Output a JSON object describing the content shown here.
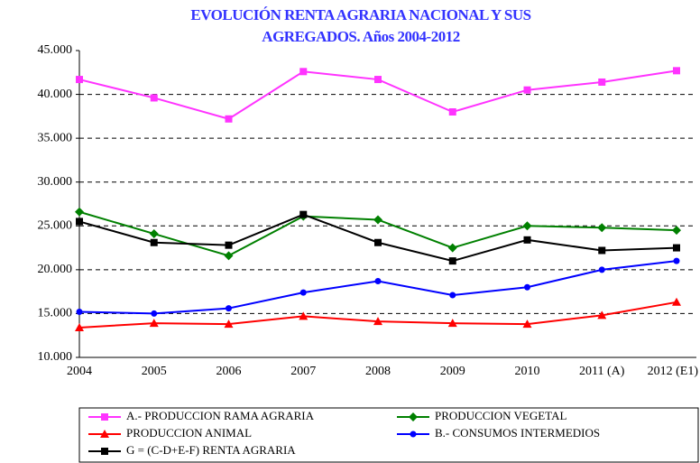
{
  "chart_data": {
    "type": "line",
    "title": [
      "EVOLUCIÓN RENTA AGRARIA NACIONAL Y SUS",
      "AGREGADOS. Años 2004-2012"
    ],
    "categories": [
      "2004",
      "2005",
      "2006",
      "2007",
      "2008",
      "2009",
      "2010",
      "2011 (A)",
      "2012 (E1)"
    ],
    "ylim": [
      10000,
      45000
    ],
    "yticks": [
      {
        "value": 10000,
        "label": "10.000"
      },
      {
        "value": 15000,
        "label": "15.000"
      },
      {
        "value": 20000,
        "label": "20.000"
      },
      {
        "value": 25000,
        "label": "25.000"
      },
      {
        "value": 30000,
        "label": "30.000"
      },
      {
        "value": 35000,
        "label": "35.000"
      },
      {
        "value": 40000,
        "label": "40.000"
      },
      {
        "value": 45000,
        "label": "45.000"
      }
    ],
    "grid": true,
    "series": [
      {
        "name": "A.- PRODUCCION RAMA AGRARIA",
        "color": "#ff33ff",
        "marker": "square",
        "values": [
          41700,
          39600,
          37200,
          42600,
          41700,
          38000,
          40500,
          41400,
          42700
        ]
      },
      {
        "name": "PRODUCCION VEGETAL",
        "color": "#008000",
        "marker": "diamond",
        "values": [
          26600,
          24100,
          21600,
          26100,
          25700,
          22500,
          25000,
          24800,
          24500
        ]
      },
      {
        "name": "PRODUCCION ANIMAL",
        "color": "#ff0000",
        "marker": "triangle",
        "values": [
          13400,
          13900,
          13800,
          14700,
          14100,
          13900,
          13800,
          14800,
          16300
        ]
      },
      {
        "name": "B.- CONSUMOS INTERMEDIOS",
        "color": "#0000ff",
        "marker": "circle",
        "values": [
          15200,
          15000,
          15600,
          17400,
          18700,
          17100,
          18000,
          20000,
          21000
        ]
      },
      {
        "name": "G = (C-D+E-F)  RENTA AGRARIA",
        "color": "#000000",
        "marker": "square",
        "values": [
          25500,
          23100,
          22800,
          26300,
          23100,
          21000,
          23400,
          22200,
          22500
        ]
      }
    ]
  }
}
